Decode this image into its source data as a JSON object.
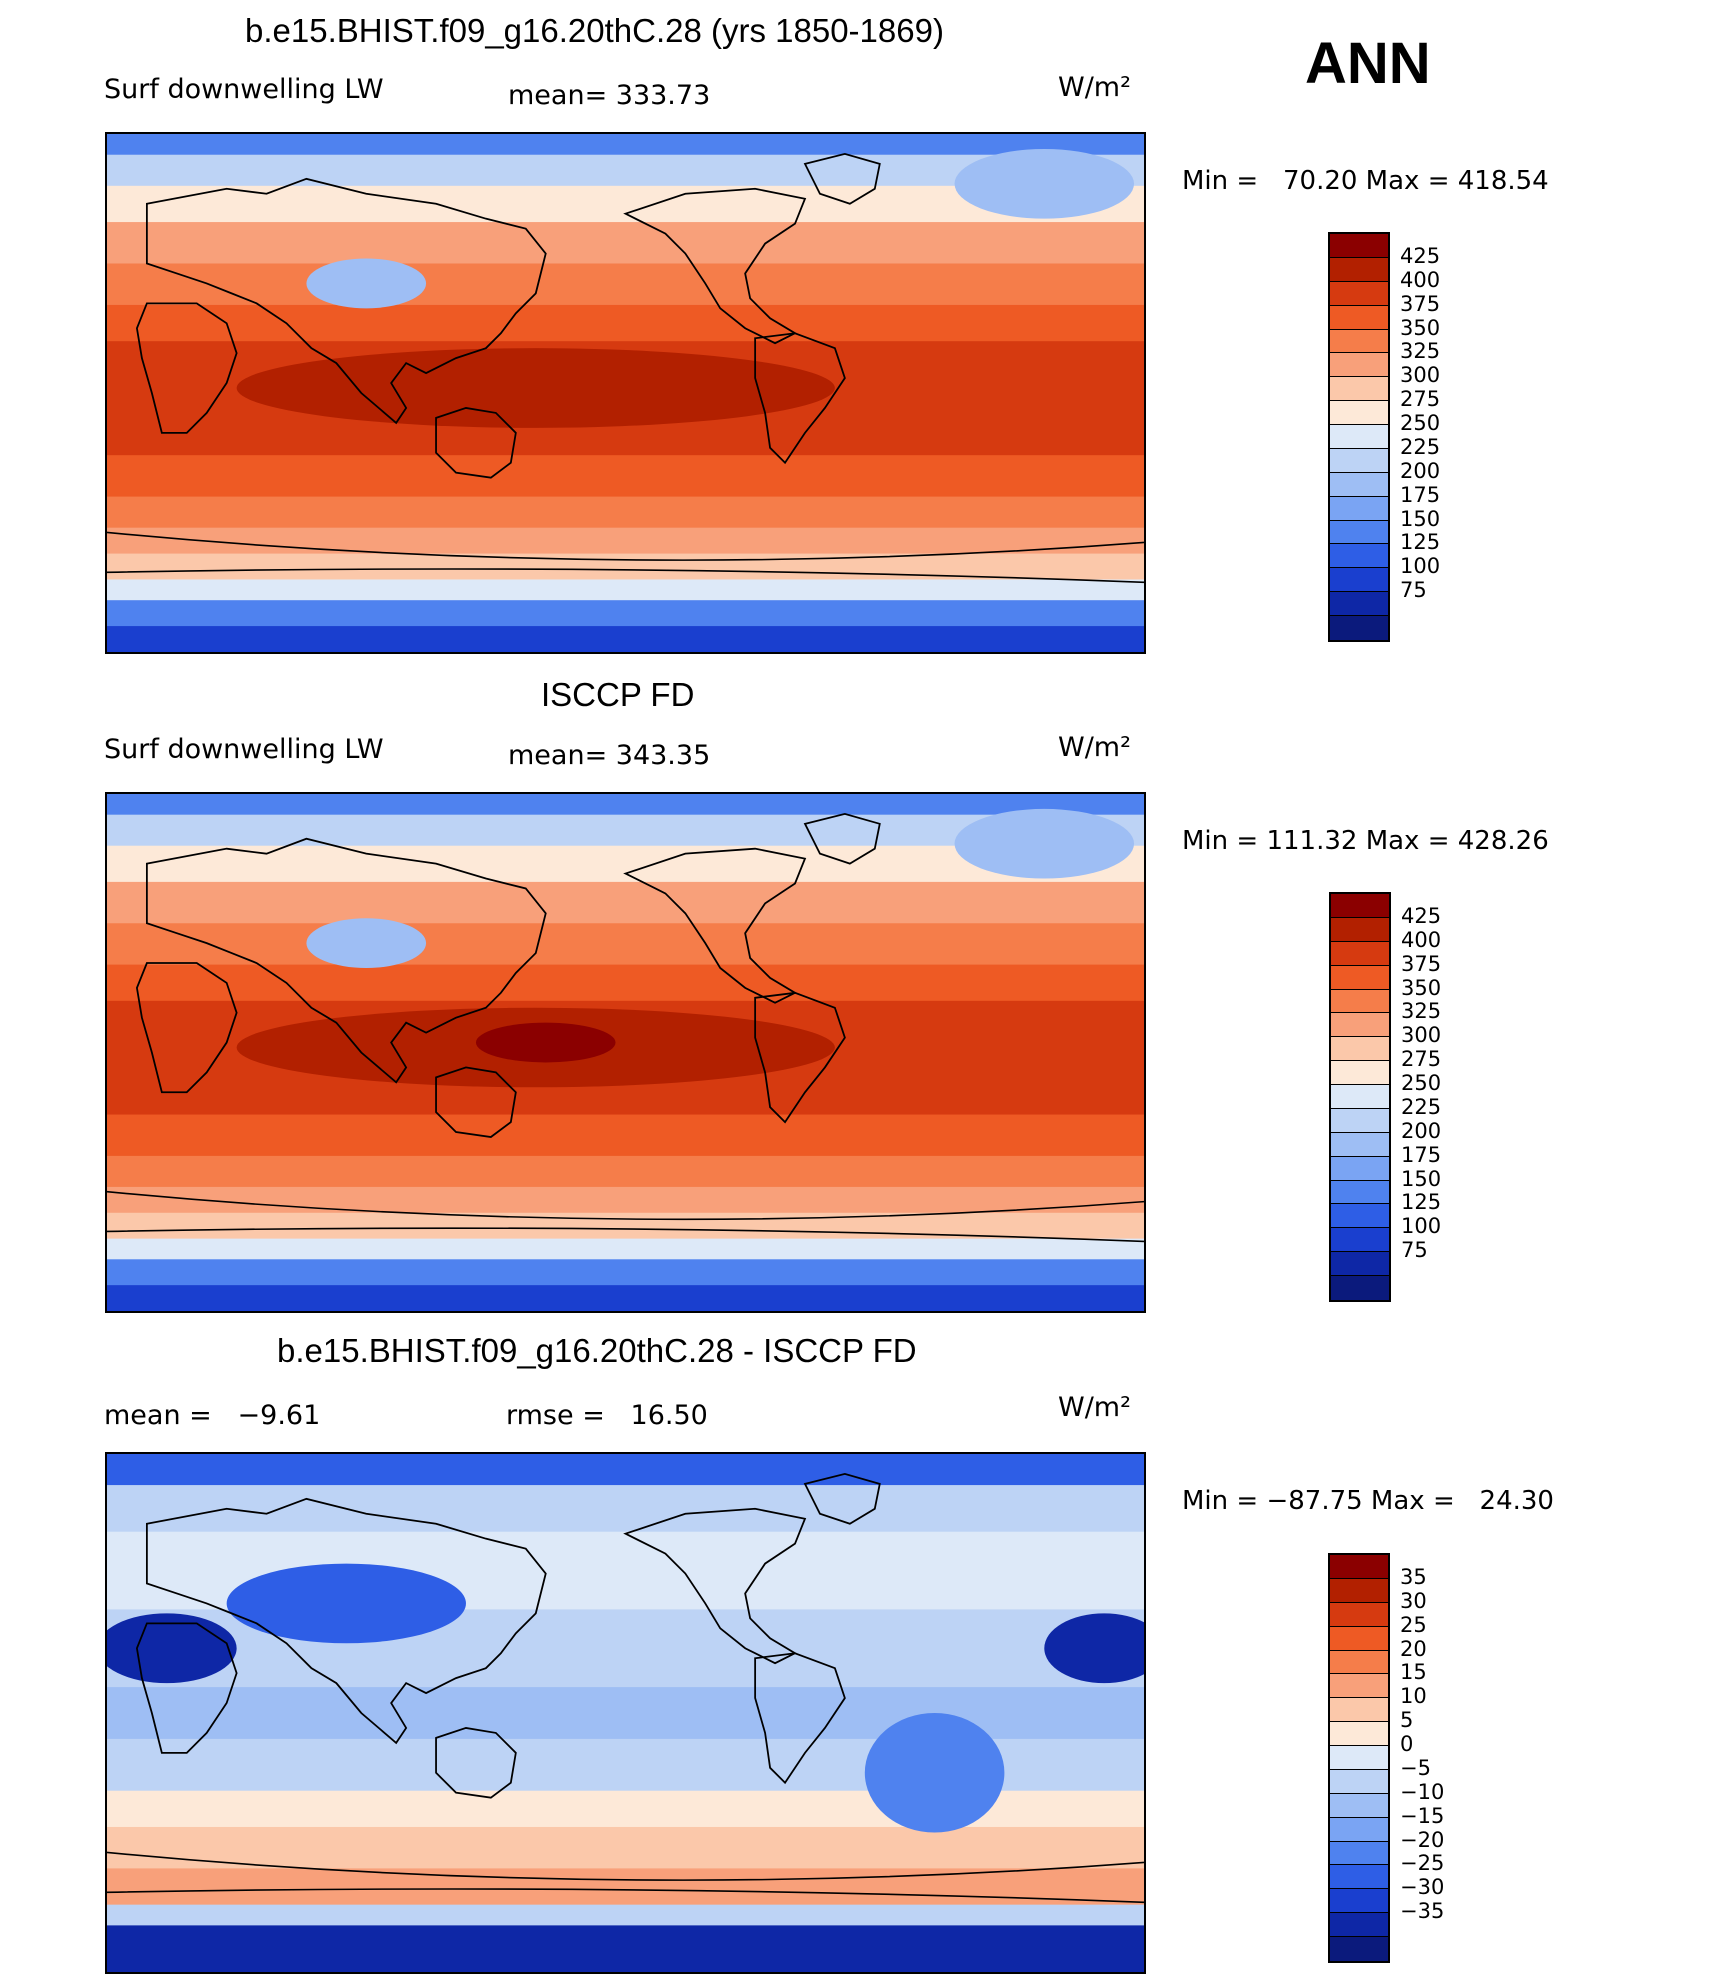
{
  "panels": [
    {
      "title": "b.e15.BHIST.f09_g16.20thC.28 (yrs 1850-1869)",
      "left_label": "Surf downwelling LW",
      "center_label": "mean= 333.73",
      "units": "W/m²",
      "minmax": "Min =   70.20 Max = 418.54",
      "scale": "abs",
      "variant": 0
    },
    {
      "title": "ISCCP FD",
      "left_label": "Surf downwelling LW",
      "center_label": "mean= 343.35",
      "units": "W/m²",
      "minmax": "Min = 111.32 Max = 428.26",
      "scale": "abs",
      "variant": 1
    },
    {
      "title": "b.e15.BHIST.f09_g16.20thC.28 - ISCCP FD",
      "left_label": "mean =   −9.61",
      "center_label": "rmse =   16.50",
      "units": "W/m²",
      "minmax": "Min = −87.75 Max =   24.30",
      "scale": "diff",
      "variant": 2
    }
  ],
  "season": "ANN",
  "colorbars": {
    "abs": {
      "colors": [
        "#8b0000",
        "#b22000",
        "#d63a10",
        "#ee5a24",
        "#f57d4a",
        "#f8a07a",
        "#fbc8aa",
        "#fde9d8",
        "#dde9f8",
        "#bdd3f5",
        "#9ebef4",
        "#7aa4f3",
        "#4f82ef",
        "#2e5ee6",
        "#1a3fcf",
        "#0e27a6",
        "#0b1a7c"
      ],
      "ticks": [
        "425",
        "400",
        "375",
        "350",
        "325",
        "300",
        "275",
        "250",
        "225",
        "200",
        "175",
        "150",
        "125",
        "100",
        "75"
      ]
    },
    "diff": {
      "colors": [
        "#8b0000",
        "#b22000",
        "#d63a10",
        "#ee5a24",
        "#f57d4a",
        "#f8a07a",
        "#fbc8aa",
        "#fde9d8",
        "#dde9f8",
        "#bdd3f5",
        "#9ebef4",
        "#7aa4f3",
        "#4f82ef",
        "#2e5ee6",
        "#1a3fcf",
        "#0e27a6",
        "#0b1a7c"
      ],
      "ticks": [
        "35",
        "30",
        "25",
        "20",
        "15",
        "10",
        "5",
        "0",
        "−5",
        "−10",
        "−15",
        "−20",
        "−25",
        "−30",
        "−35"
      ]
    }
  }
}
